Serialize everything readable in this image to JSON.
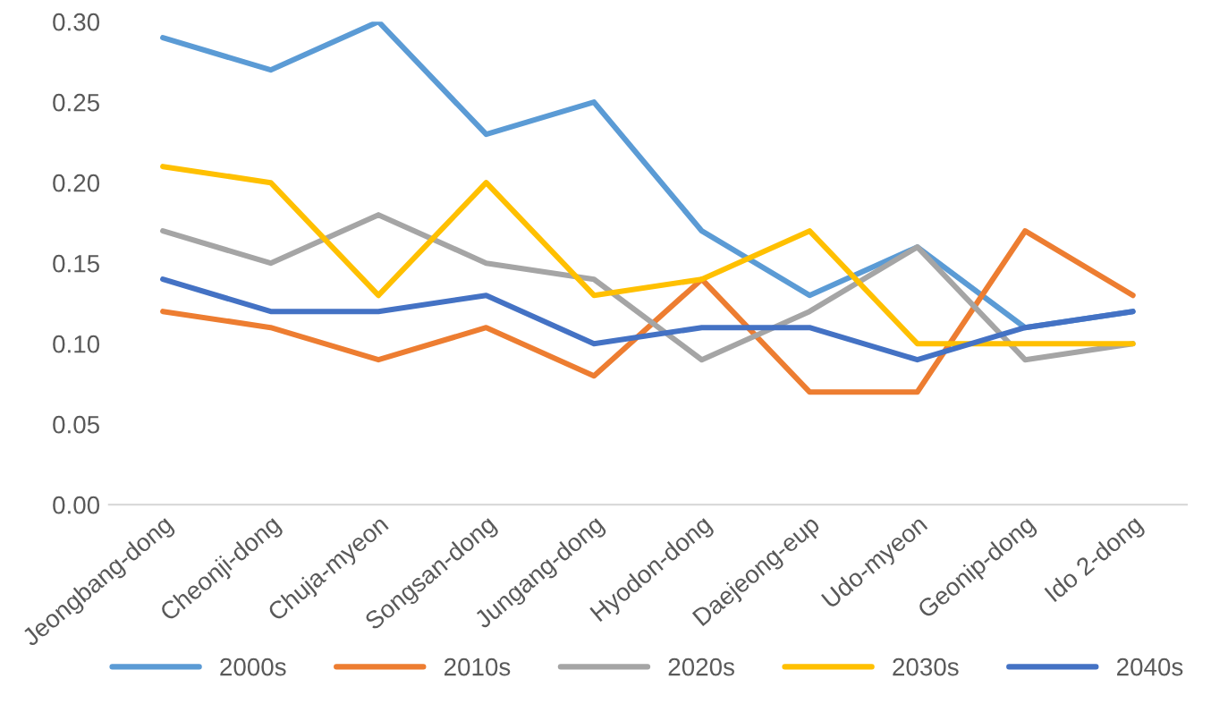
{
  "chart_data": {
    "type": "line",
    "categories": [
      "Jeongbang-dong",
      "Cheonji-dong",
      "Chuja-myeon",
      "Songsan-dong",
      "Jungang-dong",
      "Hyodon-dong",
      "Daejeong-eup",
      "Udo-myeon",
      "Geonip-dong",
      "Ido 2-dong"
    ],
    "series": [
      {
        "name": "2000s",
        "color": "#5b9bd5",
        "values": [
          0.29,
          0.27,
          0.3,
          0.23,
          0.25,
          0.17,
          0.13,
          0.16,
          0.11,
          0.12
        ]
      },
      {
        "name": "2010s",
        "color": "#ed7d31",
        "values": [
          0.12,
          0.11,
          0.09,
          0.11,
          0.08,
          0.14,
          0.07,
          0.07,
          0.17,
          0.13
        ]
      },
      {
        "name": "2020s",
        "color": "#a5a5a5",
        "values": [
          0.17,
          0.15,
          0.18,
          0.15,
          0.14,
          0.09,
          0.12,
          0.16,
          0.09,
          0.1
        ]
      },
      {
        "name": "2030s",
        "color": "#ffc000",
        "values": [
          0.21,
          0.2,
          0.13,
          0.2,
          0.13,
          0.14,
          0.17,
          0.1,
          0.1,
          0.1
        ]
      },
      {
        "name": "2040s",
        "color": "#4472c4",
        "values": [
          0.14,
          0.12,
          0.12,
          0.13,
          0.1,
          0.11,
          0.11,
          0.09,
          0.11,
          0.12
        ]
      }
    ],
    "ylim": [
      0,
      0.3
    ],
    "yticks": [
      {
        "value": 0,
        "label": "0.00"
      },
      {
        "value": 0.05,
        "label": "0.05"
      },
      {
        "value": 0.1,
        "label": "0.10"
      },
      {
        "value": 0.15,
        "label": "0.15"
      },
      {
        "value": 0.2,
        "label": "0.20"
      },
      {
        "value": 0.25,
        "label": "0.25"
      },
      {
        "value": 0.3,
        "label": "0.30"
      }
    ],
    "grid": false,
    "legend": "bottom",
    "marker": "none",
    "line_style": "solid"
  }
}
